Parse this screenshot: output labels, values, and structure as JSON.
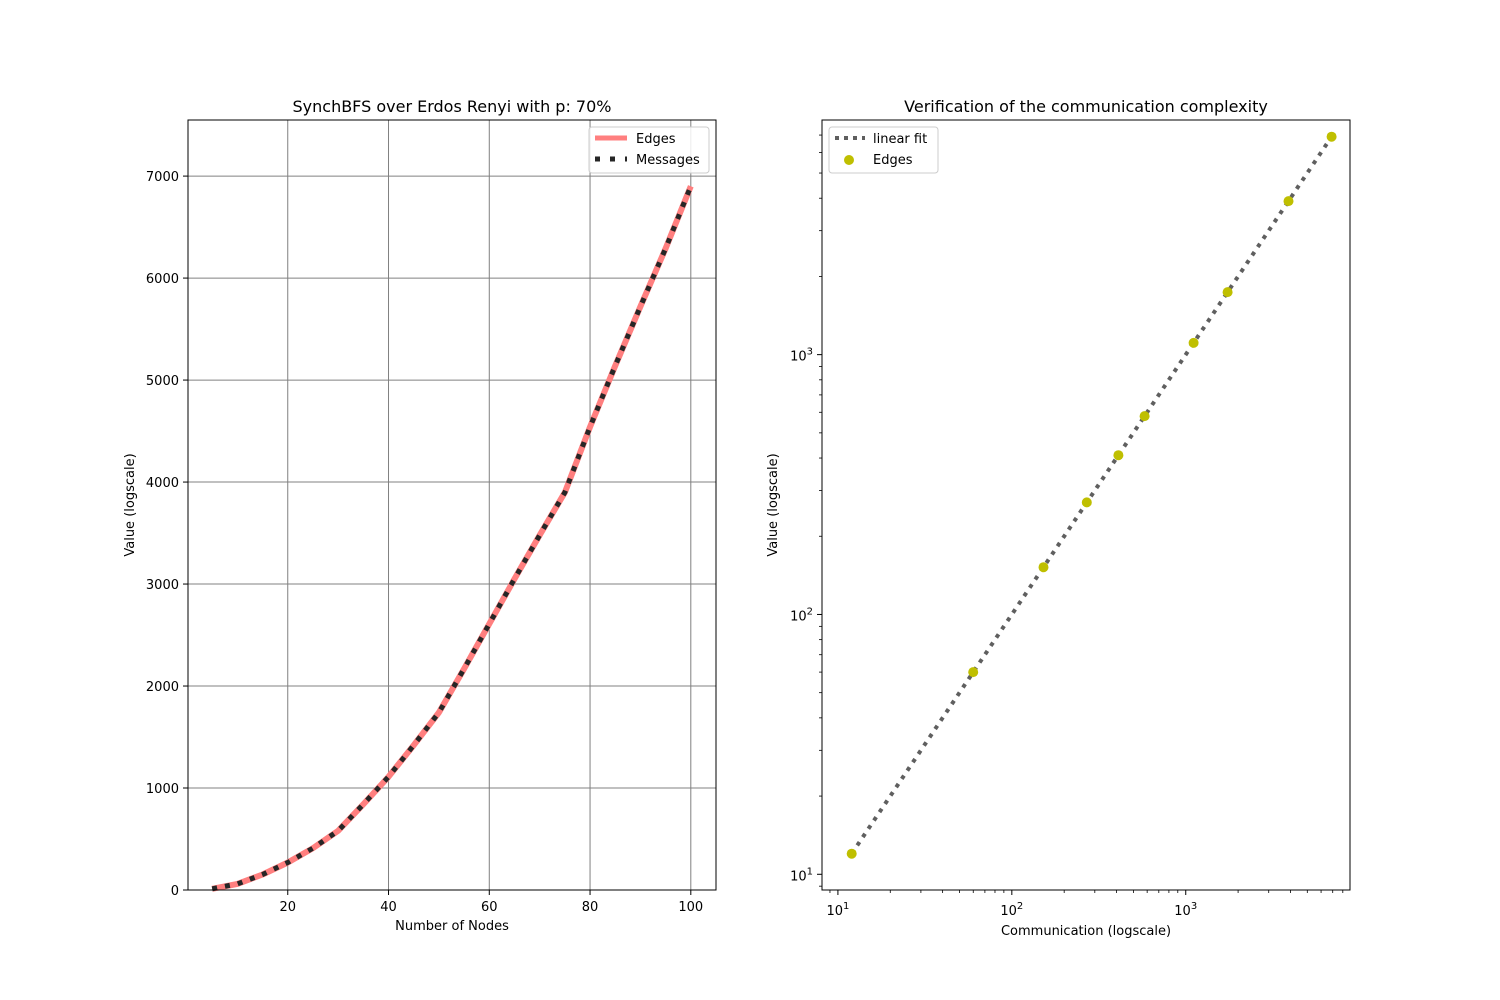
{
  "chart_data": [
    {
      "type": "line",
      "title": "SynchBFS over Erdos Renyi with p: 70%",
      "xlabel": "Number of Nodes",
      "ylabel": "Value (logscale)",
      "xlim": [
        0.2,
        105
      ],
      "ylim": [
        0,
        7550
      ],
      "xticks": [
        20,
        40,
        60,
        80,
        100
      ],
      "yticks": [
        0,
        1000,
        2000,
        3000,
        4000,
        5000,
        6000,
        7000
      ],
      "grid": true,
      "legend_position": "top-right",
      "x": [
        5,
        10,
        15,
        20,
        25,
        30,
        35,
        40,
        45,
        50,
        55,
        60,
        65,
        70,
        75,
        80,
        85,
        90,
        95,
        100
      ],
      "series": [
        {
          "name": "Edges",
          "style": "solid",
          "color": "#ff7f7f",
          "values": [
            12,
            60,
            152,
            270,
            410,
            580,
            840,
            1110,
            1420,
            1740,
            2170,
            2610,
            3050,
            3480,
            3900,
            4540,
            5140,
            5720,
            6290,
            6900
          ]
        },
        {
          "name": "Messages",
          "style": "dotted",
          "color": "#262626",
          "values": [
            12,
            60,
            152,
            270,
            410,
            580,
            840,
            1110,
            1420,
            1740,
            2170,
            2610,
            3050,
            3480,
            3900,
            4540,
            5140,
            5720,
            6290,
            6900
          ]
        }
      ]
    },
    {
      "type": "scatter",
      "title": "Verification of the communication complexity",
      "xlabel": "Communication (logscale)",
      "ylabel": "Value (logscale)",
      "xscale": "log",
      "yscale": "log",
      "xlim": [
        8.1,
        8800
      ],
      "ylim": [
        8.7,
        8000
      ],
      "xticks": [
        {
          "value": 10,
          "base": "10",
          "exp": "1"
        },
        {
          "value": 100,
          "base": "10",
          "exp": "2"
        },
        {
          "value": 1000,
          "base": "10",
          "exp": "3"
        }
      ],
      "yticks": [
        {
          "value": 10,
          "base": "10",
          "exp": "1"
        },
        {
          "value": 100,
          "base": "10",
          "exp": "2"
        },
        {
          "value": 1000,
          "base": "10",
          "exp": "3"
        }
      ],
      "grid": false,
      "legend_position": "top-left",
      "series": [
        {
          "name": "linear fit",
          "style": "dotted",
          "color": "#5f5f5f",
          "points": [
            [
              12,
              12
            ],
            [
              6900,
              6900
            ]
          ]
        },
        {
          "name": "Edges",
          "style": "marker",
          "color": "#bfbf00",
          "points": [
            [
              12,
              12
            ],
            [
              60,
              60
            ],
            [
              152,
              152
            ],
            [
              270,
              270
            ],
            [
              410,
              410
            ],
            [
              580,
              580
            ],
            [
              1110,
              1110
            ],
            [
              1740,
              1740
            ],
            [
              3900,
              3900
            ],
            [
              6900,
              6900
            ]
          ]
        }
      ]
    }
  ]
}
